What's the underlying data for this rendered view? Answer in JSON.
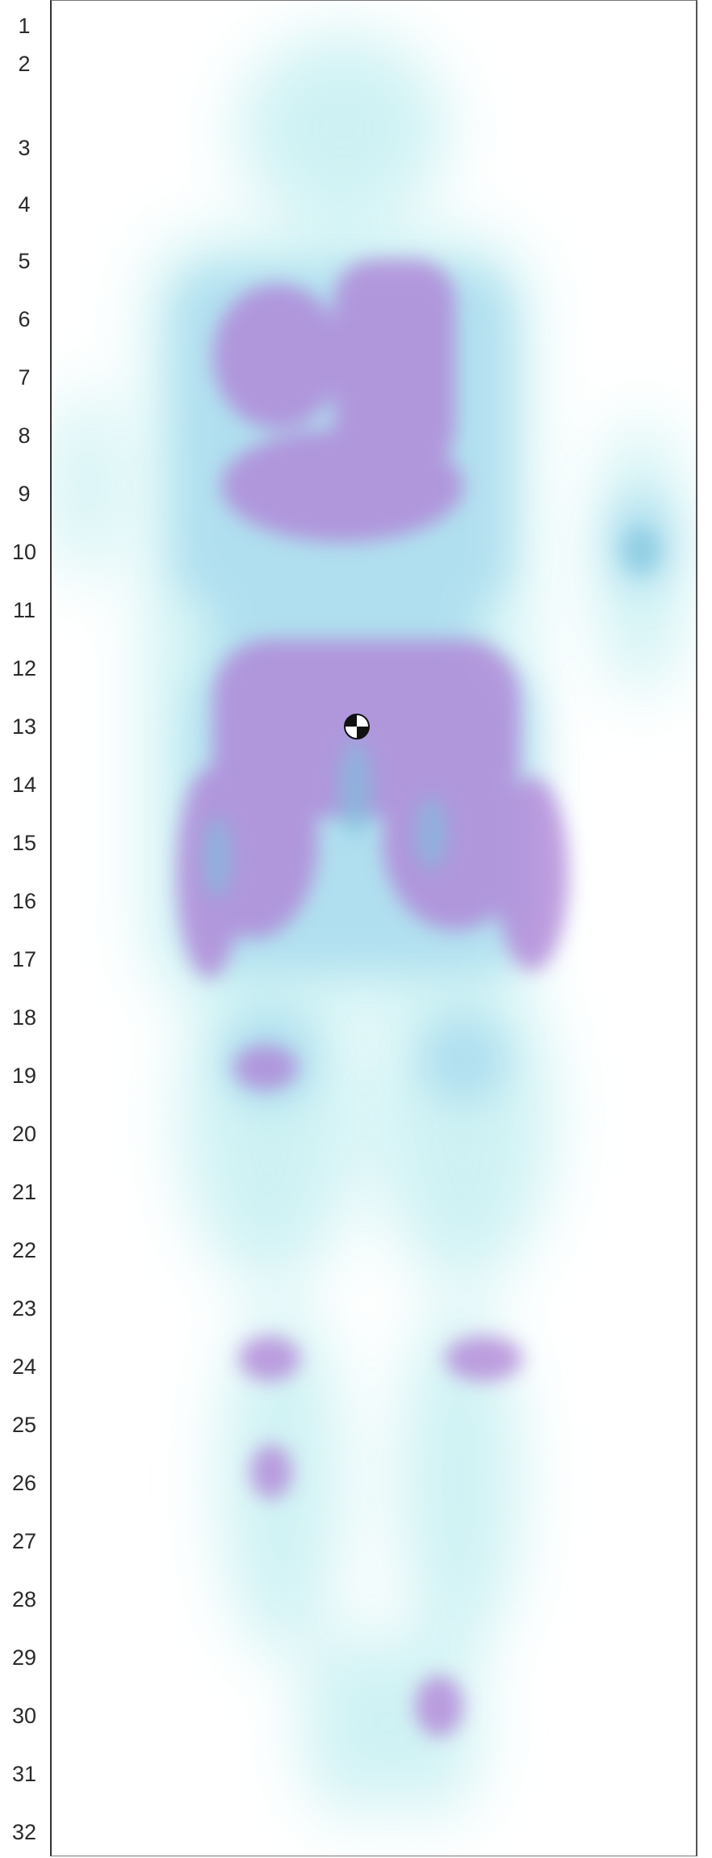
{
  "row_labels": [
    "1",
    "2",
    "3",
    "4",
    "5",
    "6",
    "7",
    "8",
    "9",
    "10",
    "11",
    "12",
    "13",
    "14",
    "15",
    "16",
    "17",
    "18",
    "19",
    "20",
    "21",
    "22",
    "23",
    "24",
    "25",
    "26",
    "27",
    "28",
    "29",
    "30",
    "31",
    "32"
  ],
  "colors": {
    "low": "#b8ecf0",
    "mid": "#9ed6ec",
    "high": "#b27fd6",
    "peak": "#9c6ec8",
    "marker_dark": "#111111",
    "marker_light": "#ffffff"
  },
  "center_marker": {
    "icon": "center-of-mass-icon"
  }
}
